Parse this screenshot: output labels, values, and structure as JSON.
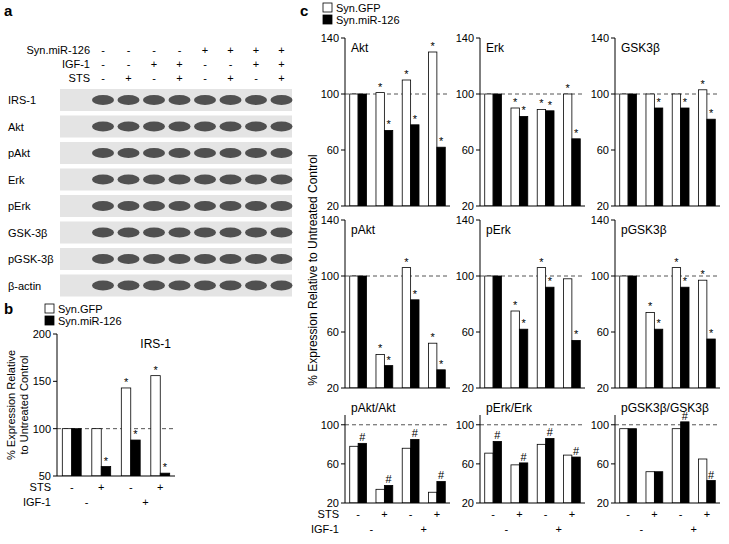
{
  "blot": {
    "panel": "a",
    "treatments": [
      {
        "label": "Syn.miR-126",
        "signs": [
          "-",
          "-",
          "-",
          "-",
          "+",
          "+",
          "+",
          "+"
        ]
      },
      {
        "label": "IGF-1",
        "signs": [
          "-",
          "-",
          "+",
          "+",
          "-",
          "-",
          "+",
          "+"
        ]
      },
      {
        "label": "STS",
        "signs": [
          "-",
          "+",
          "-",
          "+",
          "-",
          "+",
          "-",
          "+"
        ]
      }
    ],
    "rows": [
      "IRS-1",
      "Akt",
      "pAkt",
      "Erk",
      "pErk",
      "GSK-3β",
      "pGSK-3β",
      "β-actin"
    ]
  },
  "chart_data": [
    {
      "type": "bar",
      "panel": "b",
      "title": "IRS-1",
      "y_label": [
        "% Expression Relative",
        "to Untreated Control"
      ],
      "legend": "top-left",
      "categories": [
        null,
        null,
        null,
        null
      ],
      "x_rows": [
        {
          "label": "STS",
          "labels": [
            "-",
            "+",
            "-",
            "+"
          ]
        },
        {
          "label": "IGF-1",
          "labels": [
            "-",
            "+"
          ]
        }
      ],
      "series": [
        {
          "name": "Syn.GFP",
          "color": "#ffffff",
          "values": [
            100,
            100,
            143,
            156
          ],
          "marks": [
            null,
            null,
            "*",
            "*"
          ]
        },
        {
          "name": "Syn.miR-126",
          "color": "#000000",
          "values": [
            100,
            60,
            88,
            53
          ],
          "marks": [
            null,
            "*",
            "*",
            "*"
          ]
        }
      ],
      "ylim": [
        50,
        200
      ],
      "yticks": [
        50,
        100,
        150,
        200
      ],
      "reference_line": 100
    },
    {
      "type": "bar",
      "panel": "c",
      "title": "Akt",
      "y_label": "% Expression Relative to Untreated Control",
      "legend": "top-left",
      "categories": [
        null,
        null,
        null,
        null
      ],
      "series": [
        {
          "name": "Syn.GFP",
          "color": "#ffffff",
          "values": [
            100,
            101,
            110,
            130
          ],
          "marks": [
            null,
            "*",
            "*",
            "*"
          ]
        },
        {
          "name": "Syn.miR-126",
          "color": "#000000",
          "values": [
            100,
            74,
            78,
            62
          ],
          "marks": [
            null,
            "*",
            "*",
            "*"
          ]
        }
      ],
      "ylim": [
        20,
        140
      ],
      "yticks": [
        20,
        60,
        100,
        140
      ],
      "reference_line": 100
    },
    {
      "type": "bar",
      "title": "Erk",
      "categories": [
        null,
        null,
        null,
        null
      ],
      "series": [
        {
          "color": "#ffffff",
          "values": [
            100,
            90,
            89,
            100
          ],
          "marks": [
            null,
            "*",
            "*",
            "*"
          ]
        },
        {
          "color": "#000000",
          "values": [
            100,
            84,
            88,
            68
          ],
          "marks": [
            null,
            "*",
            "*",
            "*"
          ]
        }
      ],
      "ylim": [
        20,
        140
      ],
      "yticks": [
        20,
        60,
        100,
        140
      ],
      "reference_line": 100
    },
    {
      "type": "bar",
      "title": "GSK3β",
      "categories": [
        null,
        null,
        null,
        null
      ],
      "series": [
        {
          "color": "#ffffff",
          "values": [
            100,
            100,
            100,
            103
          ],
          "marks": [
            null,
            null,
            null,
            "*"
          ]
        },
        {
          "color": "#000000",
          "values": [
            100,
            90,
            90,
            82
          ],
          "marks": [
            null,
            "*",
            "*",
            "*"
          ]
        }
      ],
      "ylim": [
        20,
        140
      ],
      "yticks": [
        20,
        60,
        100,
        140
      ],
      "reference_line": 100
    },
    {
      "type": "bar",
      "title": "pAkt",
      "categories": [
        null,
        null,
        null,
        null
      ],
      "series": [
        {
          "color": "#ffffff",
          "values": [
            100,
            44,
            106,
            52
          ],
          "marks": [
            null,
            "*",
            "*",
            "*"
          ]
        },
        {
          "color": "#000000",
          "values": [
            100,
            36,
            83,
            33
          ],
          "marks": [
            null,
            "*",
            "*",
            "*"
          ]
        }
      ],
      "ylim": [
        20,
        140
      ],
      "yticks": [
        20,
        60,
        100,
        140
      ],
      "reference_line": 100
    },
    {
      "type": "bar",
      "title": "pErk",
      "categories": [
        null,
        null,
        null,
        null
      ],
      "series": [
        {
          "color": "#ffffff",
          "values": [
            100,
            75,
            106,
            98
          ],
          "marks": [
            null,
            "*",
            "*",
            null
          ]
        },
        {
          "color": "#000000",
          "values": [
            100,
            62,
            92,
            54
          ],
          "marks": [
            null,
            "*",
            "*",
            "*"
          ]
        }
      ],
      "ylim": [
        20,
        140
      ],
      "yticks": [
        20,
        60,
        100,
        140
      ],
      "reference_line": 100
    },
    {
      "type": "bar",
      "title": "pGSK3β",
      "categories": [
        null,
        null,
        null,
        null
      ],
      "series": [
        {
          "color": "#ffffff",
          "values": [
            100,
            74,
            106,
            97
          ],
          "marks": [
            null,
            "*",
            "*",
            "*"
          ]
        },
        {
          "color": "#000000",
          "values": [
            100,
            62,
            92,
            55
          ],
          "marks": [
            null,
            "*",
            "*",
            "*"
          ]
        }
      ],
      "ylim": [
        20,
        140
      ],
      "yticks": [
        20,
        60,
        100,
        140
      ],
      "reference_line": 100
    },
    {
      "type": "bar",
      "title": "pAkt/Akt",
      "categories": [
        null,
        null,
        null,
        null
      ],
      "x_rows": [
        {
          "label": "STS",
          "labels": [
            "-",
            "+",
            "-",
            "+"
          ]
        },
        {
          "label": "IGF-1",
          "labels": [
            "-",
            "+"
          ]
        }
      ],
      "series": [
        {
          "color": "#ffffff",
          "values": [
            78,
            34,
            76,
            31
          ]
        },
        {
          "color": "#000000",
          "values": [
            81,
            38,
            85,
            42
          ],
          "marks": [
            "#",
            "#",
            "#",
            "#"
          ]
        }
      ],
      "ylim": [
        20,
        110
      ],
      "yticks": [
        20,
        60,
        100
      ],
      "reference_line": 100
    },
    {
      "type": "bar",
      "title": "pErk/Erk",
      "categories": [
        null,
        null,
        null,
        null
      ],
      "x_rows": [
        {
          "labels": [
            "-",
            "+",
            "-",
            "+"
          ]
        },
        {
          "labels": [
            "-",
            "+"
          ]
        }
      ],
      "series": [
        {
          "color": "#ffffff",
          "values": [
            71,
            59,
            80,
            69
          ]
        },
        {
          "color": "#000000",
          "values": [
            83,
            61,
            86,
            67
          ],
          "marks": [
            "#",
            "#",
            "#",
            "#"
          ]
        }
      ],
      "ylim": [
        20,
        110
      ],
      "yticks": [
        20,
        60,
        100
      ],
      "reference_line": 100
    },
    {
      "type": "bar",
      "title": "pGSK3β/GSK3β",
      "categories": [
        null,
        null,
        null,
        null
      ],
      "x_rows": [
        {
          "labels": [
            "-",
            "+",
            "-",
            "+"
          ]
        },
        {
          "labels": [
            "-",
            "+"
          ]
        }
      ],
      "series": [
        {
          "color": "#ffffff",
          "values": [
            96,
            52,
            96,
            65
          ]
        },
        {
          "color": "#000000",
          "values": [
            96,
            52,
            103,
            43
          ],
          "marks": [
            null,
            null,
            "#",
            "#"
          ]
        }
      ],
      "ylim": [
        20,
        110
      ],
      "yticks": [
        20,
        60,
        100
      ],
      "reference_line": 100
    }
  ]
}
